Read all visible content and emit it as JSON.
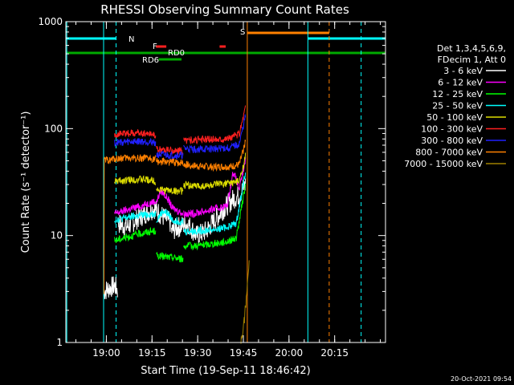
{
  "chart_data": {
    "type": "line",
    "title": "RHESSI Observing Summary Count Rates",
    "xlabel": "Start Time (19-Sep-11 18:46:42)",
    "ylabel": "Count Rate (s⁻¹ detector⁻¹)",
    "log_y": true,
    "xlim_min": [
      0,
      105
    ],
    "ylim": [
      1,
      1000
    ],
    "x_ticks": [
      {
        "min": 13.3,
        "label": "19:00"
      },
      {
        "min": 28.3,
        "label": "19:15"
      },
      {
        "min": 43.3,
        "label": "19:30"
      },
      {
        "min": 58.3,
        "label": "19:45"
      },
      {
        "min": 73.3,
        "label": "20:00"
      },
      {
        "min": 88.3,
        "label": "20:15"
      }
    ],
    "y_ticks": [
      {
        "value": 1,
        "label": "1"
      },
      {
        "value": 10,
        "label": "10"
      },
      {
        "value": 100,
        "label": "100"
      },
      {
        "value": 1000,
        "label": "1000"
      }
    ],
    "legend": {
      "position": "right",
      "header": [
        "Det 1,3,4,5,6,9,",
        "FDecim 1, Att 0"
      ]
    },
    "series": [
      {
        "name": "3 - 6 keV",
        "color": "#ffffff",
        "segments": [
          {
            "x": [
              12.5,
              14,
              16,
              17
            ],
            "y": [
              3.0,
              3.2,
              3.4,
              3.1
            ]
          },
          {
            "x": [
              17.2,
              20,
              23,
              26,
              29,
              32,
              34.5
            ],
            "y": [
              13,
              12,
              14,
              16,
              18,
              15,
              13
            ]
          },
          {
            "x": [
              34.7,
              37,
              40,
              43,
              46,
              49,
              52,
              55,
              57,
              59
            ],
            "y": [
              11,
              12,
              13,
              10,
              11,
              14,
              18,
              22,
              24,
              30
            ]
          }
        ]
      },
      {
        "name": "6 - 12 keV",
        "color": "#ff00ff",
        "segments": [
          {
            "x": [
              16,
              19,
              22,
              25,
              27,
              29.5
            ],
            "y": [
              16,
              17,
              18,
              19,
              20,
              21
            ]
          },
          {
            "x": [
              29.7,
              31,
              32,
              33.5,
              35,
              37,
              38.5
            ],
            "y": [
              20,
              26,
              25,
              22,
              18,
              17,
              16
            ]
          },
          {
            "x": [
              38.7,
              42,
              46,
              50,
              53,
              55,
              57,
              59
            ],
            "y": [
              16,
              16,
              17,
              18,
              19,
              40,
              27,
              50
            ]
          }
        ]
      },
      {
        "name": "12 - 25 keV",
        "color": "#00ff00",
        "segments": [
          {
            "x": [
              16,
              19,
              22,
              25,
              27,
              29.5
            ],
            "y": [
              9,
              9.5,
              10,
              10.5,
              10.8,
              11
            ]
          },
          {
            "x": [
              29.7,
              33,
              36,
              38.5
            ],
            "y": [
              6.5,
              6.3,
              6.2,
              6.0
            ]
          },
          {
            "x": [
              38.7,
              42,
              46,
              50,
              53,
              56,
              59
            ],
            "y": [
              8,
              8,
              8.2,
              8.5,
              8.8,
              9.5,
              30
            ]
          }
        ]
      },
      {
        "name": "25 - 50 keV",
        "color": "#00ffff",
        "segments": [
          {
            "x": [
              16,
              19,
              22,
              25,
              27,
              29.5
            ],
            "y": [
              14,
              14.5,
              15,
              15.5,
              15.8,
              16
            ]
          },
          {
            "x": [
              29.7,
              32,
              33.5,
              35,
              38.5
            ],
            "y": [
              14,
              17,
              16,
              14,
              13.5
            ]
          },
          {
            "x": [
              38.7,
              42,
              46,
              50,
              53,
              56,
              59
            ],
            "y": [
              11,
              11,
              11.2,
              11.5,
              12,
              13,
              40
            ]
          }
        ]
      },
      {
        "name": "50 - 100 keV",
        "color": "#dddd00",
        "segments": [
          {
            "x": [
              16,
              20,
              24,
              28,
              29.5
            ],
            "y": [
              32,
              33,
              33.5,
              33,
              32
            ]
          },
          {
            "x": [
              29.7,
              33,
              36,
              38.5
            ],
            "y": [
              27,
              26.5,
              26,
              26
            ]
          },
          {
            "x": [
              38.7,
              42,
              46,
              50,
              54,
              57,
              59
            ],
            "y": [
              30,
              29,
              29,
              30,
              31,
              32,
              55
            ]
          }
        ]
      },
      {
        "name": "100 - 300 keV",
        "color": "#ff2020",
        "segments": [
          {
            "x": [
              16,
              20,
              24,
              28,
              29.5
            ],
            "y": [
              88,
              90,
              91,
              90,
              88
            ]
          },
          {
            "x": [
              29.7,
              33,
              36,
              38.5
            ],
            "y": [
              64,
              63,
              62,
              62
            ]
          },
          {
            "x": [
              38.7,
              42,
              46,
              50,
              54,
              57,
              59
            ],
            "y": [
              78,
              78,
              79,
              80,
              82,
              90,
              160
            ]
          }
        ]
      },
      {
        "name": "300 - 800 keV",
        "color": "#2020ff",
        "segments": [
          {
            "x": [
              16,
              20,
              24,
              28,
              29.5
            ],
            "y": [
              74,
              75,
              76,
              75,
              74
            ]
          },
          {
            "x": [
              29.7,
              33,
              36,
              38.5
            ],
            "y": [
              57,
              56.5,
              56,
              56
            ]
          },
          {
            "x": [
              38.7,
              42,
              46,
              50,
              54,
              57,
              59
            ],
            "y": [
              65,
              64,
              64,
              65,
              66,
              72,
              130
            ]
          }
        ]
      },
      {
        "name": "800 - 7000 keV",
        "color": "#ff8000",
        "segments": [
          {
            "x": [
              12.5,
              12.6,
              16,
              20,
              24,
              28,
              29.5
            ],
            "y": [
              3,
              50,
              52,
              53,
              53,
              52,
              52
            ]
          },
          {
            "x": [
              29.7,
              33,
              36,
              38.5
            ],
            "y": [
              49,
              49,
              48,
              48
            ]
          },
          {
            "x": [
              38.7,
              42,
              46,
              50,
              54,
              57,
              59
            ],
            "y": [
              46,
              45,
              44,
              44,
              44,
              46,
              75
            ]
          }
        ]
      },
      {
        "name": "7000 - 15000 keV",
        "color": "#a08000",
        "segments": [
          {
            "x": [
              57.5,
              58.5,
              59.5,
              60.2
            ],
            "y": [
              1.0,
              1.5,
              3,
              6
            ]
          }
        ]
      }
    ],
    "annotations": [
      {
        "label": "N",
        "color": "#00ffff"
      },
      {
        "label": "F",
        "color": "#ff2020"
      },
      {
        "label": "RD0",
        "color": "#00aa00"
      },
      {
        "label": "RD6",
        "color": "#00aa00"
      },
      {
        "label": "S",
        "color": "#ff8000"
      }
    ],
    "timestamp": "20-Oct-2021 09:54"
  }
}
